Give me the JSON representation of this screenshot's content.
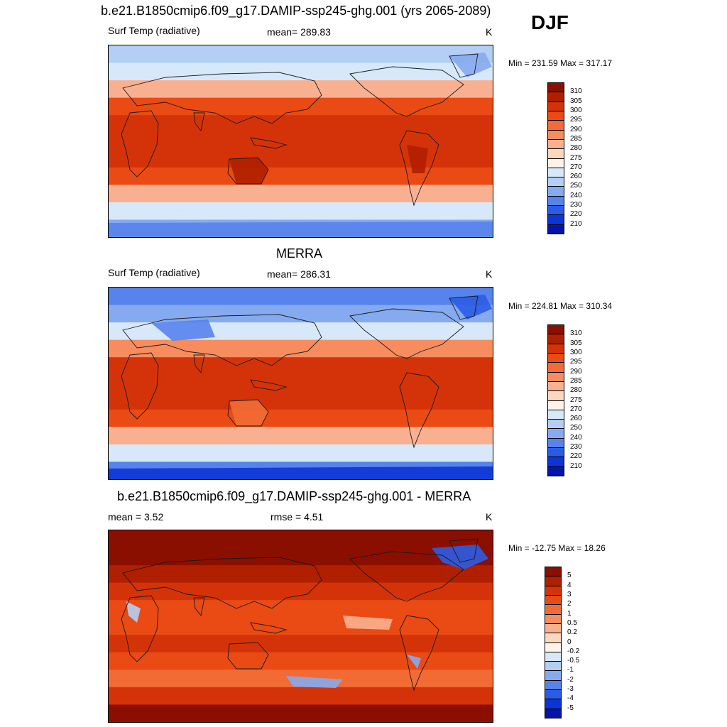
{
  "season": "DJF",
  "panels": [
    {
      "title": "b.e21.B1850cmip6.f09_g17.DAMIP-ssp245-ghg.001 (yrs 2065-2089)",
      "left_label": "Surf Temp (radiative)",
      "center_label": "mean= 289.83",
      "unit": "K",
      "minmax": "Min = 231.59 Max = 317.17",
      "colorbar": {
        "labels": [
          "310",
          "305",
          "300",
          "295",
          "290",
          "285",
          "280",
          "275",
          "270",
          "260",
          "250",
          "240",
          "230",
          "220",
          "210"
        ],
        "colors": [
          "#8b0f00",
          "#b01f00",
          "#d4330a",
          "#ea4a13",
          "#f26b35",
          "#f78c5e",
          "#f9b091",
          "#fbd7bf",
          "#fef4ea",
          "#d7e8fb",
          "#b4cff5",
          "#86aaf0",
          "#5683ec",
          "#2b5ce6",
          "#0c34d6",
          "#0514a8"
        ]
      },
      "map_style": "model"
    },
    {
      "title": "MERRA",
      "left_label": "Surf Temp (radiative)",
      "center_label": "mean= 286.31",
      "unit": "K",
      "minmax": "Min = 224.81 Max = 310.34",
      "colorbar": {
        "labels": [
          "310",
          "305",
          "300",
          "295",
          "290",
          "285",
          "280",
          "275",
          "270",
          "260",
          "250",
          "240",
          "230",
          "220",
          "210"
        ],
        "colors": [
          "#8b0f00",
          "#b01f00",
          "#d4330a",
          "#ea4a13",
          "#f26b35",
          "#f78c5e",
          "#f9b091",
          "#fbd7bf",
          "#fef4ea",
          "#d7e8fb",
          "#b4cff5",
          "#86aaf0",
          "#5683ec",
          "#2b5ce6",
          "#0c34d6",
          "#0514a8"
        ]
      },
      "map_style": "obs"
    },
    {
      "title": "b.e21.B1850cmip6.f09_g17.DAMIP-ssp245-ghg.001 - MERRA",
      "left_label": "mean =   3.52",
      "center_label": "rmse =   4.51",
      "unit": "K",
      "minmax": "Min = -12.75 Max =  18.26",
      "colorbar": {
        "labels": [
          "5",
          "4",
          "3",
          "2",
          "1",
          "0.5",
          "0.2",
          "0",
          "-0.2",
          "-0.5",
          "-1",
          "-2",
          "-3",
          "-4",
          "-5"
        ],
        "colors": [
          "#8b0f00",
          "#b01f00",
          "#d4330a",
          "#ea4a13",
          "#f26b35",
          "#f78c5e",
          "#f9b091",
          "#fbd7bf",
          "#fef4ea",
          "#d7e8fb",
          "#b4cff5",
          "#86aaf0",
          "#5683ec",
          "#2b5ce6",
          "#0c34d6",
          "#0514a8"
        ]
      },
      "map_style": "diff"
    }
  ]
}
